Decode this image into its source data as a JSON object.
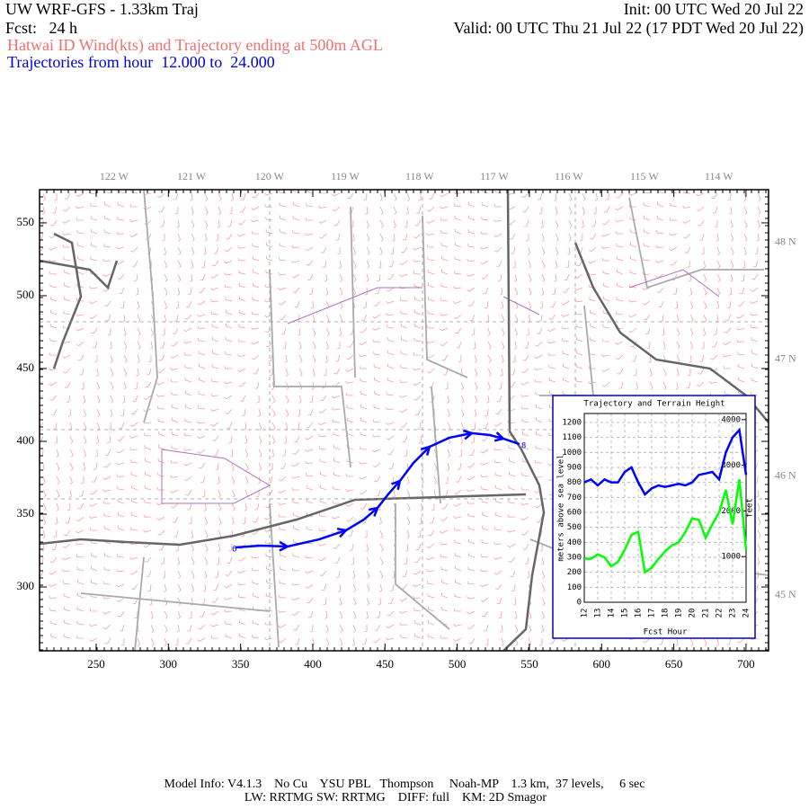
{
  "header": {
    "title": "UW WRF-GFS - 1.33km Traj",
    "init": "Init: 00 UTC Wed 20 Jul 22",
    "fcst": "Fcst:   24 h",
    "valid": "Valid: 00 UTC Thu 21 Jul 22 (17 PDT Wed 20 Jul 22)",
    "subtitle": "Hatwai ID Wind(kts) and Trajectory ending at 500m AGL",
    "trajectory_range": "Trajectories from hour  12.000 to  24.000"
  },
  "map": {
    "xlim": [
      210.8,
      715.6
    ],
    "ylim": [
      256.2,
      572.8
    ],
    "xticks": [
      250,
      300,
      350,
      400,
      450,
      500,
      550,
      600,
      650,
      700
    ],
    "yticks": [
      300,
      350,
      400,
      450,
      500,
      550
    ],
    "lon_ticks": [
      {
        "value": 262.4,
        "label": "122 W"
      },
      {
        "value": 316,
        "label": "121 W"
      },
      {
        "value": 370,
        "label": "120 W"
      },
      {
        "value": 422.4,
        "label": "119 W"
      },
      {
        "value": 474,
        "label": "118 W"
      },
      {
        "value": 525.7,
        "label": "117 W"
      },
      {
        "value": 577.3,
        "label": "116 W"
      },
      {
        "value": 629.6,
        "label": "115 W"
      },
      {
        "value": 681.2,
        "label": "114 W"
      }
    ],
    "lat_ticks": [
      {
        "value": 536.4,
        "label": "48 N"
      },
      {
        "value": 456.2,
        "label": "47 N"
      },
      {
        "value": 376,
        "label": "46 N"
      },
      {
        "value": 294.4,
        "label": "45 N"
      }
    ],
    "trajectory": {
      "color": "#0000ff",
      "start_label": "6",
      "end_label": "8",
      "x": [
        346.5,
        363.9,
        382.5,
        404.3,
        423.0,
        435.4,
        444.8,
        452.2,
        460.3,
        469.7,
        480.9,
        494.6,
        510.1,
        522.6,
        531.9,
        543.1
      ],
      "y": [
        327.2,
        328.4,
        327.8,
        332.7,
        338.9,
        346.3,
        354.3,
        363.6,
        372.8,
        385.2,
        396.3,
        402.5,
        405.6,
        404.3,
        401.9,
        398.1
      ]
    }
  },
  "chart_data": {
    "type": "line",
    "title": "Trajectory and Terrain Height",
    "x": [
      12,
      12.5,
      13,
      13.5,
      14,
      14.5,
      15,
      15.5,
      16,
      16.5,
      17,
      17.5,
      18,
      18.5,
      19,
      19.5,
      20,
      20.5,
      21,
      21.5,
      22,
      22.5,
      23,
      23.5,
      24
    ],
    "series": [
      {
        "name": "Trajectory height",
        "color": "#0000ff",
        "values": [
          800,
          820,
          780,
          820,
          800,
          800,
          870,
          900,
          800,
          720,
          760,
          780,
          770,
          780,
          790,
          780,
          800,
          850,
          860,
          870,
          820,
          1000,
          1100,
          1150,
          850
        ]
      },
      {
        "name": "Terrain height",
        "color": "#00ff00",
        "values": [
          290,
          290,
          320,
          300,
          240,
          270,
          350,
          450,
          470,
          200,
          230,
          290,
          340,
          380,
          400,
          470,
          560,
          550,
          430,
          520,
          600,
          750,
          520,
          820,
          350
        ]
      }
    ],
    "xlim": [
      12,
      24
    ],
    "xticks": [
      12,
      13,
      14,
      15,
      16,
      17,
      18,
      19,
      20,
      21,
      22,
      23,
      24
    ],
    "ylim": [
      0,
      1260
    ],
    "yticks": [
      0,
      100,
      200,
      300,
      400,
      500,
      600,
      700,
      800,
      900,
      1000,
      1100,
      1200
    ],
    "y2lim": [
      0,
      4134
    ],
    "y2ticks": [
      1000,
      2000,
      3000,
      4000
    ],
    "xlabel": "Fcst Hour",
    "ylabel": "meters above sea level",
    "y2label": "feet",
    "grid": true
  },
  "footer": {
    "line1": "Model Info: V4.1.3    No Cu    YSU PBL   Thompson     Noah-MP    1.3 km,  37 levels,     6 sec",
    "line2": "LW: RRTMG SW: RRTMG    DIFF: full    KM: 2D Smagor"
  }
}
